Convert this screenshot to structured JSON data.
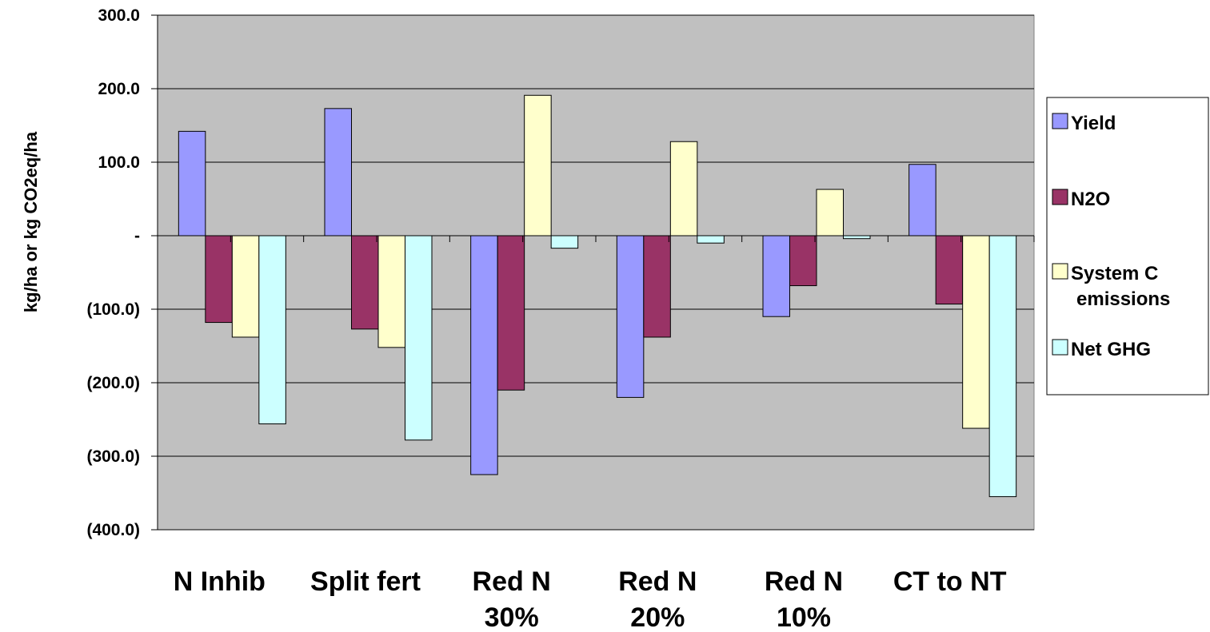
{
  "chart_data": {
    "type": "bar",
    "ylabel": "kg/ha or kg CO2eq/ha",
    "xlabel": "",
    "title": "",
    "categories": [
      [
        "N Inhib"
      ],
      [
        "Split fert"
      ],
      [
        "Red N",
        "30%"
      ],
      [
        "Red N",
        "20%"
      ],
      [
        "Red N",
        "10%"
      ],
      [
        "CT to NT"
      ]
    ],
    "series": [
      {
        "name": "Yield",
        "color": "#9999ff",
        "values": [
          142,
          173,
          -325,
          -220,
          -110,
          97
        ]
      },
      {
        "name": "N2O",
        "color": "#993366",
        "values": [
          -118,
          -127,
          -210,
          -138,
          -68,
          -93
        ]
      },
      {
        "name": "System C emissions",
        "legend_lines": [
          "System C",
          "emissions"
        ],
        "color": "#ffffcc",
        "values": [
          -138,
          -152,
          191,
          128,
          63,
          -262
        ]
      },
      {
        "name": "Net GHG",
        "color": "#ccffff",
        "values": [
          -256,
          -278,
          -17,
          -10,
          -4,
          -355
        ]
      }
    ],
    "ylim": [
      -400,
      300
    ],
    "yticks": [
      300,
      200,
      100,
      0,
      -100,
      -200,
      -300,
      -400
    ],
    "ytick_labels": [
      "300.0",
      "200.0",
      "100.0",
      "-",
      "(100.0)",
      "(200.0)",
      "(300.0)",
      "(400.0)"
    ],
    "grid": true,
    "plot_background": "#c0c0c0",
    "legend_position": "right"
  }
}
